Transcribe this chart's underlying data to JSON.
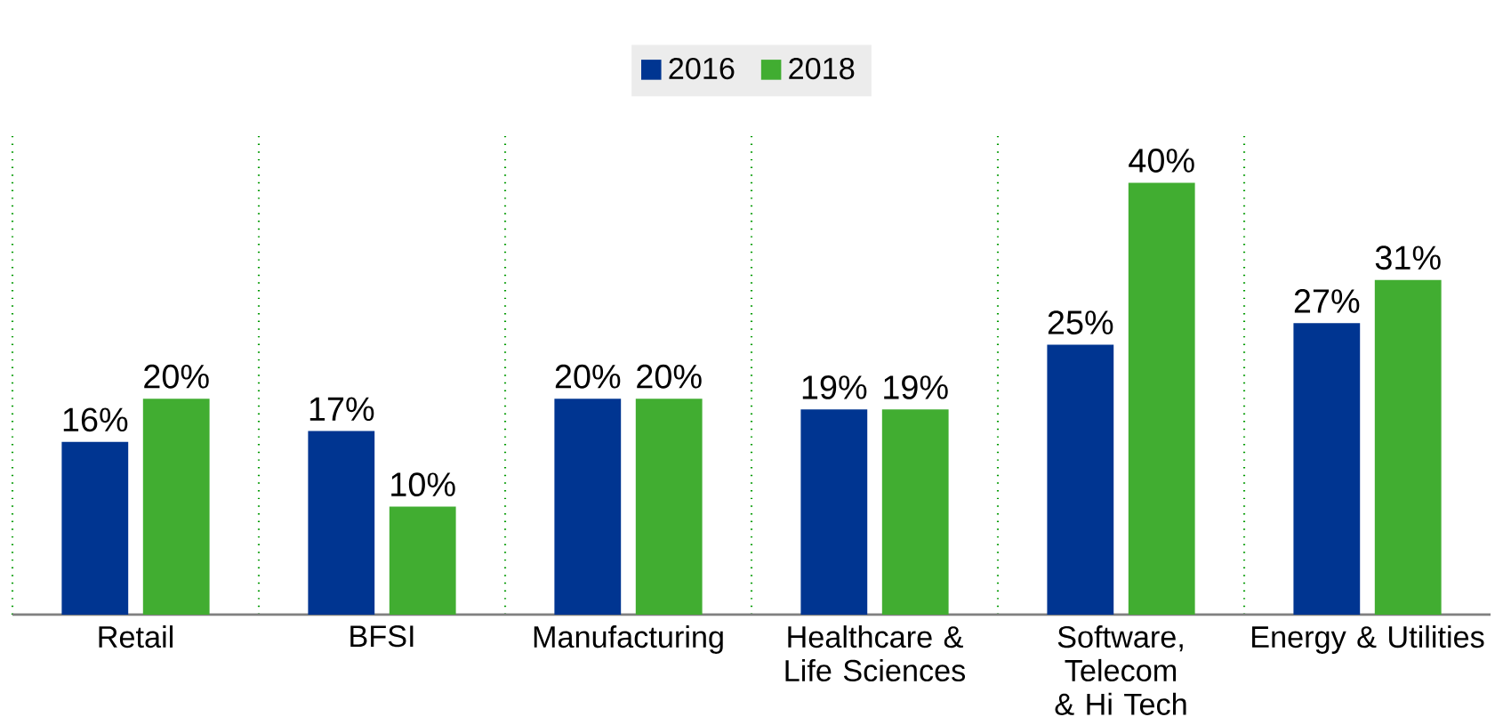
{
  "chart_data": {
    "type": "bar",
    "categories": [
      "Retail",
      "BFSI",
      "Manufacturing",
      "Healthcare & Life Sciences",
      "Software, Telecom & Hi Tech",
      "Energy & Utilities"
    ],
    "series": [
      {
        "name": "2016",
        "color": "#003591",
        "values": [
          16,
          17,
          20,
          19,
          25,
          27
        ],
        "value_labels": [
          "16%",
          "17%",
          "20%",
          "19%",
          "25%",
          "27%"
        ]
      },
      {
        "name": "2018",
        "color": "#41ad31",
        "values": [
          20,
          10,
          20,
          19,
          40,
          31
        ],
        "value_labels": [
          "20%",
          "10%",
          "20%",
          "19%",
          "40%",
          "31%"
        ]
      }
    ],
    "legend": "top"
  }
}
